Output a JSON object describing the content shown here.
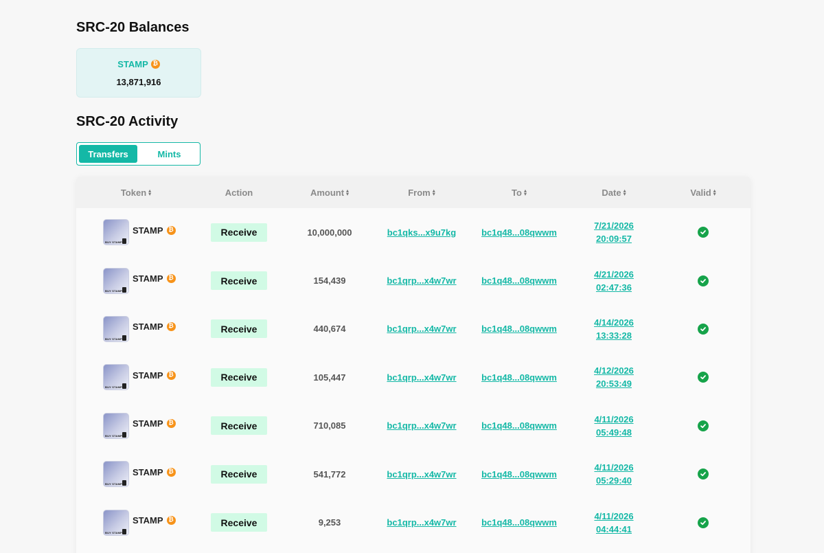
{
  "balances": {
    "title": "SRC-20 Balances",
    "card": {
      "tick": "STAMP",
      "amount": "13,871,916"
    }
  },
  "activity": {
    "title": "SRC-20 Activity",
    "tabs": [
      {
        "label": "Transfers",
        "active": true
      },
      {
        "label": "Mints",
        "active": false
      }
    ],
    "columns": [
      "Token",
      "Action",
      "Amount",
      "From",
      "To",
      "Date",
      "Valid"
    ],
    "rows": [
      {
        "token": "STAMP",
        "action": "Receive",
        "amount": "10,000,000",
        "from": "bc1qks...x9u7kg",
        "to": "bc1q48...08qwwm",
        "date": "7/21/2026",
        "time": "20:09:57",
        "valid": true
      },
      {
        "token": "STAMP",
        "action": "Receive",
        "amount": "154,439",
        "from": "bc1qrp...x4w7wr",
        "to": "bc1q48...08qwwm",
        "date": "4/21/2026",
        "time": "02:47:36",
        "valid": true
      },
      {
        "token": "STAMP",
        "action": "Receive",
        "amount": "440,674",
        "from": "bc1qrp...x4w7wr",
        "to": "bc1q48...08qwwm",
        "date": "4/14/2026",
        "time": "13:33:28",
        "valid": true
      },
      {
        "token": "STAMP",
        "action": "Receive",
        "amount": "105,447",
        "from": "bc1qrp...x4w7wr",
        "to": "bc1q48...08qwwm",
        "date": "4/12/2026",
        "time": "20:53:49",
        "valid": true
      },
      {
        "token": "STAMP",
        "action": "Receive",
        "amount": "710,085",
        "from": "bc1qrp...x4w7wr",
        "to": "bc1q48...08qwwm",
        "date": "4/11/2026",
        "time": "05:49:48",
        "valid": true
      },
      {
        "token": "STAMP",
        "action": "Receive",
        "amount": "541,772",
        "from": "bc1qrp...x4w7wr",
        "to": "bc1q48...08qwwm",
        "date": "4/11/2026",
        "time": "05:29:40",
        "valid": true
      },
      {
        "token": "STAMP",
        "action": "Receive",
        "amount": "9,253",
        "from": "bc1qrp...x4w7wr",
        "to": "bc1q48...08qwwm",
        "date": "4/11/2026",
        "time": "04:44:41",
        "valid": true
      }
    ],
    "thumb_caption": "BUY STAMP"
  },
  "icons": {
    "btc": "bitcoin-icon",
    "sort": "sort-icon",
    "valid": "check-circle-icon"
  },
  "colors": {
    "accent": "#14b8a6",
    "action_bg": "#d1fae5",
    "btc": "#f7931a",
    "valid": "#16a34a"
  }
}
